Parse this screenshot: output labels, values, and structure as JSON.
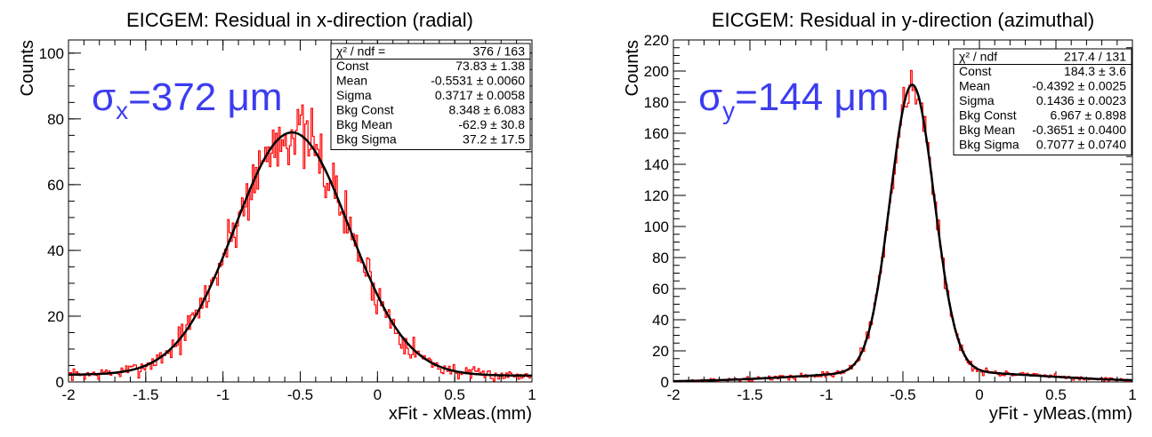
{
  "chart_data": [
    {
      "type": "histogram",
      "title": "EICGEM: Residual in x-direction (radial)",
      "xlabel": "xFit - xMeas.(mm)",
      "ylabel": "Counts",
      "xlim": [
        -2,
        1
      ],
      "ylim": [
        0,
        104
      ],
      "xticks": [
        "-2",
        "-1.5",
        "-1",
        "-0.5",
        "0",
        "0.5",
        "1"
      ],
      "yticks": [
        "0",
        "20",
        "40",
        "60",
        "80",
        "100"
      ],
      "histogram_color": "#ff0000",
      "fit_color": "#000000",
      "sigma_label": {
        "symbol": "σ",
        "sub": "x",
        "text": "=372 μm",
        "color": "#3c3cf0"
      },
      "fit": {
        "const": 73.83,
        "mean": -0.5531,
        "sigma": 0.3717,
        "bkg_const": 8.348,
        "bkg_mean": -62.9,
        "bkg_sigma": 37.2
      },
      "stats": [
        [
          "χ² / ndf =",
          "376 / 163"
        ],
        [
          "Const",
          "73.83 ± 1.38"
        ],
        [
          "Mean",
          "-0.5531 ± 0.0060"
        ],
        [
          "Sigma",
          "0.3717 ± 0.0058"
        ],
        [
          "Bkg Const",
          "8.348 ± 6.083"
        ],
        [
          "Bkg Mean",
          "-62.9 ± 30.8"
        ],
        [
          "Bkg Sigma",
          "37.2 ± 17.5"
        ]
      ],
      "noise_amplitude": 10,
      "seed": 7
    },
    {
      "type": "histogram",
      "title": "EICGEM: Residual in y-direction (azimuthal)",
      "xlabel": "yFit - yMeas.(mm)",
      "ylabel": "Counts",
      "xlim": [
        -2,
        1
      ],
      "ylim": [
        0,
        220
      ],
      "xticks": [
        "-2",
        "-1.5",
        "-1",
        "-0.5",
        "0",
        "0.5",
        "1"
      ],
      "yticks": [
        "0",
        "20",
        "40",
        "60",
        "80",
        "100",
        "120",
        "140",
        "160",
        "180",
        "200",
        "220"
      ],
      "histogram_color": "#ff0000",
      "fit_color": "#000000",
      "sigma_label": {
        "symbol": "σ",
        "sub": "y",
        "text": "=144 μm",
        "color": "#3c3cf0"
      },
      "fit": {
        "const": 184.3,
        "mean": -0.4392,
        "sigma": 0.1436,
        "bkg_const": 6.967,
        "bkg_mean": -0.3651,
        "bkg_sigma": 0.7077
      },
      "stats": [
        [
          "χ² / ndf",
          "217.4 / 131"
        ],
        [
          "Const",
          "184.3 ± 3.6"
        ],
        [
          "Mean",
          "-0.4392 ± 0.0025"
        ],
        [
          "Sigma",
          "0.1436 ± 0.0023"
        ],
        [
          "Bkg Const",
          "6.967 ± 0.898"
        ],
        [
          "Bkg Mean",
          "-0.3651 ± 0.0400"
        ],
        [
          "Bkg Sigma",
          "0.7077 ± 0.0740"
        ]
      ],
      "noise_amplitude": 12,
      "seed": 13
    }
  ]
}
